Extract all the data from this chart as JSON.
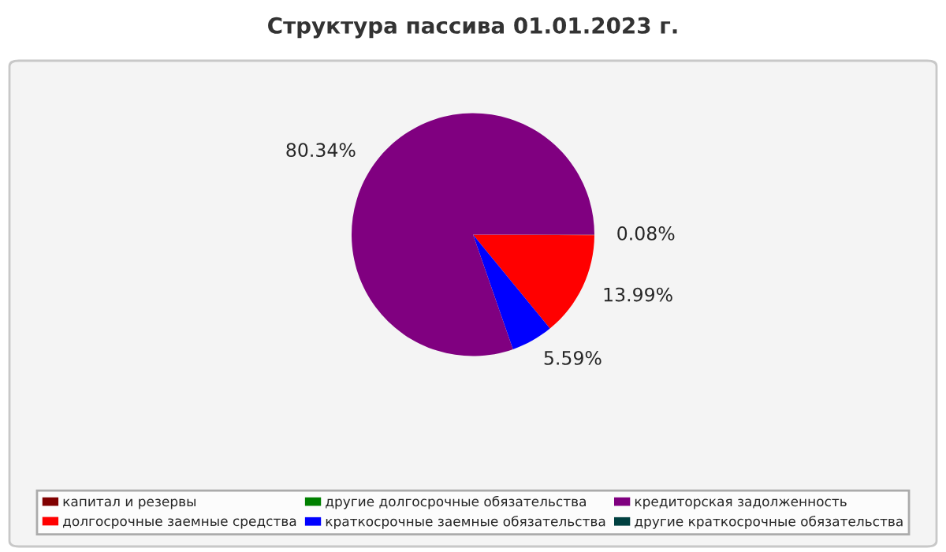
{
  "chart_data": {
    "type": "pie",
    "title": "Структура пассива 01.01.2023 г.",
    "categories": [
      "капитал и резервы",
      "долгосрочные заемные средства",
      "другие долгосрочные обязательства",
      "краткосрочные заемные обязательства",
      "кредиторская задолженность",
      "другие краткосрочные обязательства"
    ],
    "values": [
      0.08,
      13.99,
      0,
      5.59,
      80.34,
      0
    ],
    "colors": [
      "#800000",
      "#ff0000",
      "#008000",
      "#0000ff",
      "#800080",
      "#004040"
    ],
    "value_labels": [
      "0.08%",
      "13.99%",
      null,
      "5.59%",
      "80.34%",
      null
    ],
    "legend": "bottom"
  }
}
